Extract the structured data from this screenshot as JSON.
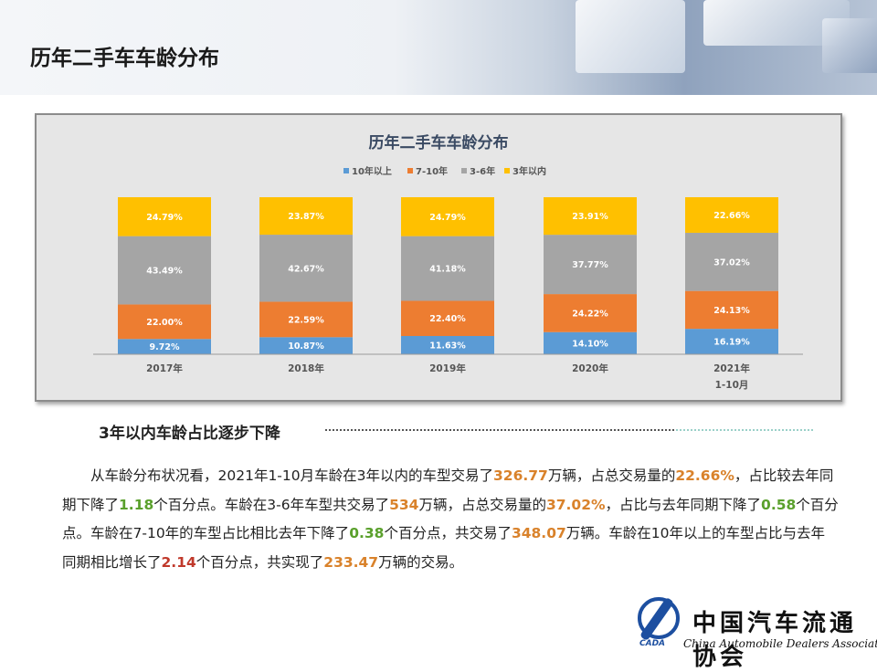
{
  "page": {
    "banner_title": "历年二手车车龄分布",
    "section_heading": "3年以内车龄占比逐步下降",
    "paragraph": [
      {
        "t": "从车龄分布状况看，2021年1-10月车龄在3年以内的车型交易了",
        "s": ""
      },
      {
        "t": "326.77",
        "s": "o"
      },
      {
        "t": "万辆，占总交易量的",
        "s": ""
      },
      {
        "t": "22.66%",
        "s": "o"
      },
      {
        "t": "，占比较去年同期下降了",
        "s": ""
      },
      {
        "t": "1.18",
        "s": "g"
      },
      {
        "t": "个百分点。车龄在3-6年车型共交易了",
        "s": ""
      },
      {
        "t": "534",
        "s": "o"
      },
      {
        "t": "万辆，占总交易量的",
        "s": ""
      },
      {
        "t": "37.02%",
        "s": "o"
      },
      {
        "t": "，占比与去年同期下降了",
        "s": ""
      },
      {
        "t": "0.58",
        "s": "g"
      },
      {
        "t": "个百分点。车龄在7-10年的车型占比相比去年下降了",
        "s": ""
      },
      {
        "t": "0.38",
        "s": "g"
      },
      {
        "t": "个百分点，共交易了",
        "s": ""
      },
      {
        "t": "348.07",
        "s": "o"
      },
      {
        "t": "万辆。车龄在10年以上的车型占比与去年同期相比增长了",
        "s": ""
      },
      {
        "t": "2.14",
        "s": "r"
      },
      {
        "t": "个百分点，共实现了",
        "s": ""
      },
      {
        "t": "233.47",
        "s": "o"
      },
      {
        "t": "万辆的交易。",
        "s": ""
      }
    ],
    "logo": {
      "abbr": "CADA",
      "name_cn": "中国汽车流通协会",
      "name_en": "China Automobile Dealers Association"
    }
  },
  "chart_data": {
    "type": "bar",
    "stacked": true,
    "title": "历年二手车车龄分布",
    "legend_position": "top",
    "categories": [
      "2017年",
      "2018年",
      "2019年",
      "2020年",
      "2021年\n1-10月"
    ],
    "unit": "%",
    "ylim": [
      0,
      100
    ],
    "grid": false,
    "series": [
      {
        "name": "10年以上",
        "color": "#5b9bd5",
        "values": [
          9.72,
          10.87,
          11.63,
          14.1,
          16.19
        ]
      },
      {
        "name": "7-10年",
        "color": "#ed7d31",
        "values": [
          22.0,
          22.59,
          22.4,
          24.22,
          24.13
        ]
      },
      {
        "name": "3-6年",
        "color": "#a5a5a5",
        "values": [
          43.49,
          42.67,
          41.18,
          37.77,
          37.02
        ]
      },
      {
        "name": "3年以内",
        "color": "#ffc000",
        "values": [
          24.79,
          23.87,
          24.79,
          23.91,
          22.66
        ]
      }
    ]
  }
}
